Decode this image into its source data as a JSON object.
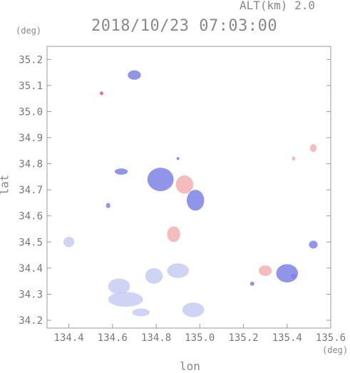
{
  "header": {
    "altitude_label": "ALT(km) 2.0",
    "datetime": "2018/10/23 07:03:00",
    "y_unit": "(deg)",
    "x_unit": "(deg)"
  },
  "chart_data": {
    "type": "heatmap",
    "title": "2018/10/23 07:03:00",
    "subtitle": "ALT(km) 2.0",
    "xlabel": "lon",
    "ylabel": "lat",
    "x_unit": "(deg)",
    "y_unit": "(deg)",
    "xlim": [
      134.3,
      135.6
    ],
    "ylim": [
      34.17,
      35.25
    ],
    "x_ticks": [
      "134.4",
      "134.6",
      "134.8",
      "135.0",
      "135.2",
      "135.4",
      "135.6"
    ],
    "y_ticks": [
      "34.2",
      "34.3",
      "34.4",
      "34.5",
      "34.6",
      "34.7",
      "34.8",
      "34.9",
      "35.0",
      "35.1",
      "35.2"
    ],
    "grid": false,
    "colors": {
      "light_blue": "#c8ccf2",
      "blue": "#7d83e6",
      "pink": "#f2b0b0",
      "red": "#e05a5a",
      "axis": "#999999"
    },
    "patches": [
      {
        "lon": 134.4,
        "lat": 34.5,
        "rx": 0.025,
        "ry": 0.02,
        "color": "light_blue"
      },
      {
        "lon": 134.63,
        "lat": 34.33,
        "rx": 0.05,
        "ry": 0.03,
        "color": "light_blue"
      },
      {
        "lon": 134.66,
        "lat": 34.28,
        "rx": 0.08,
        "ry": 0.028,
        "color": "light_blue"
      },
      {
        "lon": 134.73,
        "lat": 34.23,
        "rx": 0.04,
        "ry": 0.015,
        "color": "light_blue"
      },
      {
        "lon": 134.79,
        "lat": 34.37,
        "rx": 0.04,
        "ry": 0.03,
        "color": "light_blue"
      },
      {
        "lon": 134.9,
        "lat": 34.39,
        "rx": 0.05,
        "ry": 0.028,
        "color": "light_blue"
      },
      {
        "lon": 134.97,
        "lat": 34.24,
        "rx": 0.05,
        "ry": 0.028,
        "color": "light_blue"
      },
      {
        "lon": 134.82,
        "lat": 34.74,
        "rx": 0.06,
        "ry": 0.045,
        "color": "blue"
      },
      {
        "lon": 134.93,
        "lat": 34.72,
        "rx": 0.04,
        "ry": 0.035,
        "color": "pink"
      },
      {
        "lon": 134.98,
        "lat": 34.66,
        "rx": 0.04,
        "ry": 0.04,
        "color": "blue"
      },
      {
        "lon": 134.88,
        "lat": 34.53,
        "rx": 0.03,
        "ry": 0.03,
        "color": "pink"
      },
      {
        "lon": 134.64,
        "lat": 34.77,
        "rx": 0.03,
        "ry": 0.012,
        "color": "blue"
      },
      {
        "lon": 134.7,
        "lat": 35.14,
        "rx": 0.03,
        "ry": 0.018,
        "color": "blue"
      },
      {
        "lon": 135.4,
        "lat": 34.38,
        "rx": 0.05,
        "ry": 0.035,
        "color": "blue"
      },
      {
        "lon": 135.3,
        "lat": 34.39,
        "rx": 0.03,
        "ry": 0.02,
        "color": "pink"
      },
      {
        "lon": 135.52,
        "lat": 34.86,
        "rx": 0.015,
        "ry": 0.015,
        "color": "pink"
      },
      {
        "lon": 135.43,
        "lat": 34.82,
        "rx": 0.008,
        "ry": 0.008,
        "color": "pink"
      },
      {
        "lon": 135.52,
        "lat": 34.49,
        "rx": 0.02,
        "ry": 0.015,
        "color": "blue"
      },
      {
        "lon": 134.55,
        "lat": 35.07,
        "rx": 0.008,
        "ry": 0.007,
        "color": "red"
      },
      {
        "lon": 134.9,
        "lat": 34.82,
        "rx": 0.007,
        "ry": 0.006,
        "color": "blue"
      },
      {
        "lon": 135.24,
        "lat": 34.34,
        "rx": 0.01,
        "ry": 0.008,
        "color": "blue"
      },
      {
        "lon": 134.58,
        "lat": 34.64,
        "rx": 0.01,
        "ry": 0.01,
        "color": "blue"
      },
      {
        "lon": 135.43,
        "lat": 34.37,
        "rx": 0.012,
        "ry": 0.01,
        "color": "blue"
      }
    ]
  }
}
